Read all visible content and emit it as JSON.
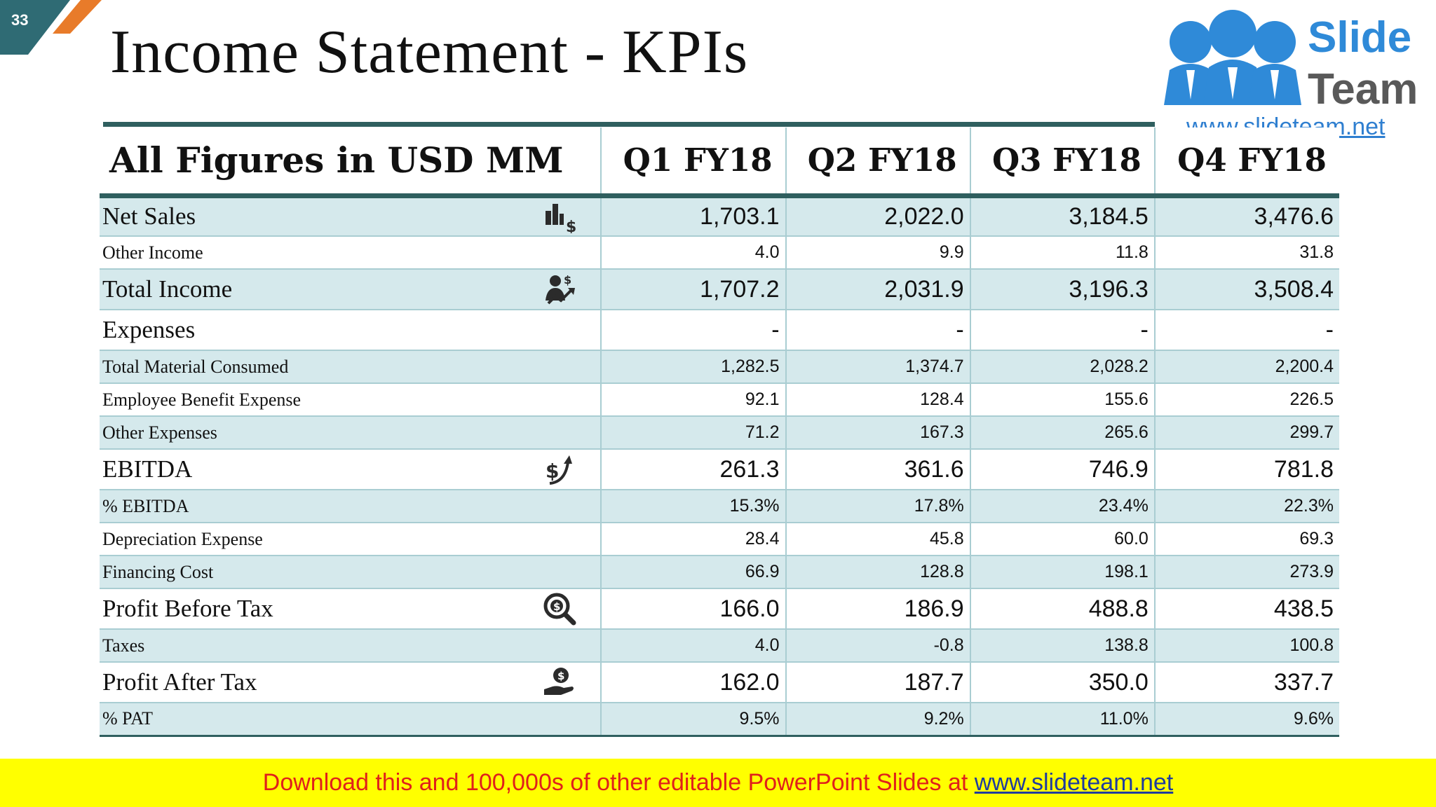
{
  "slide_number": "33",
  "title": "Income Statement - KPIs",
  "logo": {
    "word1": "Slide",
    "word2": "Team",
    "url": "www.slideteam.net"
  },
  "table": {
    "header": {
      "label": "All Figures in USD MM",
      "quarters": [
        "Q1 FY18",
        "Q2 FY18",
        "Q3 FY18",
        "Q4 FY18"
      ]
    },
    "rows": [
      {
        "label": "Net Sales",
        "size": "major",
        "shade": "shaded",
        "icon": "bar-chart-dollar-icon",
        "values": [
          "1,703.1",
          "2,022.0",
          "3,184.5",
          "3,476.6"
        ]
      },
      {
        "label": "Other Income",
        "size": "minor",
        "shade": "white",
        "values": [
          "4.0",
          "9.9",
          "11.8",
          "31.8"
        ]
      },
      {
        "label": "Total Income",
        "size": "major",
        "shade": "shaded",
        "icon": "person-dollar-growth-icon",
        "values": [
          "1,707.2",
          "2,031.9",
          "3,196.3",
          "3,508.4"
        ]
      },
      {
        "label": "Expenses",
        "size": "major",
        "shade": "white",
        "values": [
          "-",
          "-",
          "-",
          "-"
        ]
      },
      {
        "label": "Total Material Consumed",
        "size": "minor",
        "shade": "shaded",
        "values": [
          "1,282.5",
          "1,374.7",
          "2,028.2",
          "2,200.4"
        ]
      },
      {
        "label": "Employee Benefit Expense",
        "size": "minor",
        "shade": "white",
        "values": [
          "92.1",
          "128.4",
          "155.6",
          "226.5"
        ]
      },
      {
        "label": "Other Expenses",
        "size": "minor",
        "shade": "shaded",
        "values": [
          "71.2",
          "167.3",
          "265.6",
          "299.7"
        ]
      },
      {
        "label": "EBITDA",
        "size": "major",
        "shade": "white",
        "icon": "dollar-growth-arrow-icon",
        "values": [
          "261.3",
          "361.6",
          "746.9",
          "781.8"
        ]
      },
      {
        "label": "% EBITDA",
        "size": "minor",
        "shade": "shaded",
        "values": [
          "15.3%",
          "17.8%",
          "23.4%",
          "22.3%"
        ]
      },
      {
        "label": "Depreciation Expense",
        "size": "minor",
        "shade": "white",
        "values": [
          "28.4",
          "45.8",
          "60.0",
          "69.3"
        ]
      },
      {
        "label": "Financing Cost",
        "size": "minor",
        "shade": "shaded",
        "values": [
          "66.9",
          "128.8",
          "198.1",
          "273.9"
        ]
      },
      {
        "label": "Profit Before Tax",
        "size": "major",
        "shade": "white",
        "icon": "dollar-magnifier-icon",
        "values": [
          "166.0",
          "186.9",
          "488.8",
          "438.5"
        ]
      },
      {
        "label": "Taxes",
        "size": "minor",
        "shade": "shaded",
        "values": [
          "4.0",
          "-0.8",
          "138.8",
          "100.8"
        ]
      },
      {
        "label": "Profit After Tax",
        "size": "major",
        "shade": "white",
        "icon": "hand-holding-dollar-icon",
        "values": [
          "162.0",
          "187.7",
          "350.0",
          "337.7"
        ]
      },
      {
        "label": "% PAT",
        "size": "minor",
        "shade": "shaded",
        "values": [
          "9.5%",
          "9.2%",
          "11.0%",
          "9.6%"
        ]
      }
    ]
  },
  "banner": {
    "text": "Download this and 100,000s of other editable PowerPoint Slides at ",
    "link": "www.slideteam.net"
  },
  "colors": {
    "header_rule": "#2f5f5f",
    "row_shade": "#d5e9ec",
    "grid": "#a9cdd2",
    "slide_number_tab": "#2f6b74",
    "corner_accent": "#e87b2a",
    "banner_bg": "#ffff00",
    "banner_text": "#e0201b",
    "logo_blue": "#2f8ad8"
  }
}
